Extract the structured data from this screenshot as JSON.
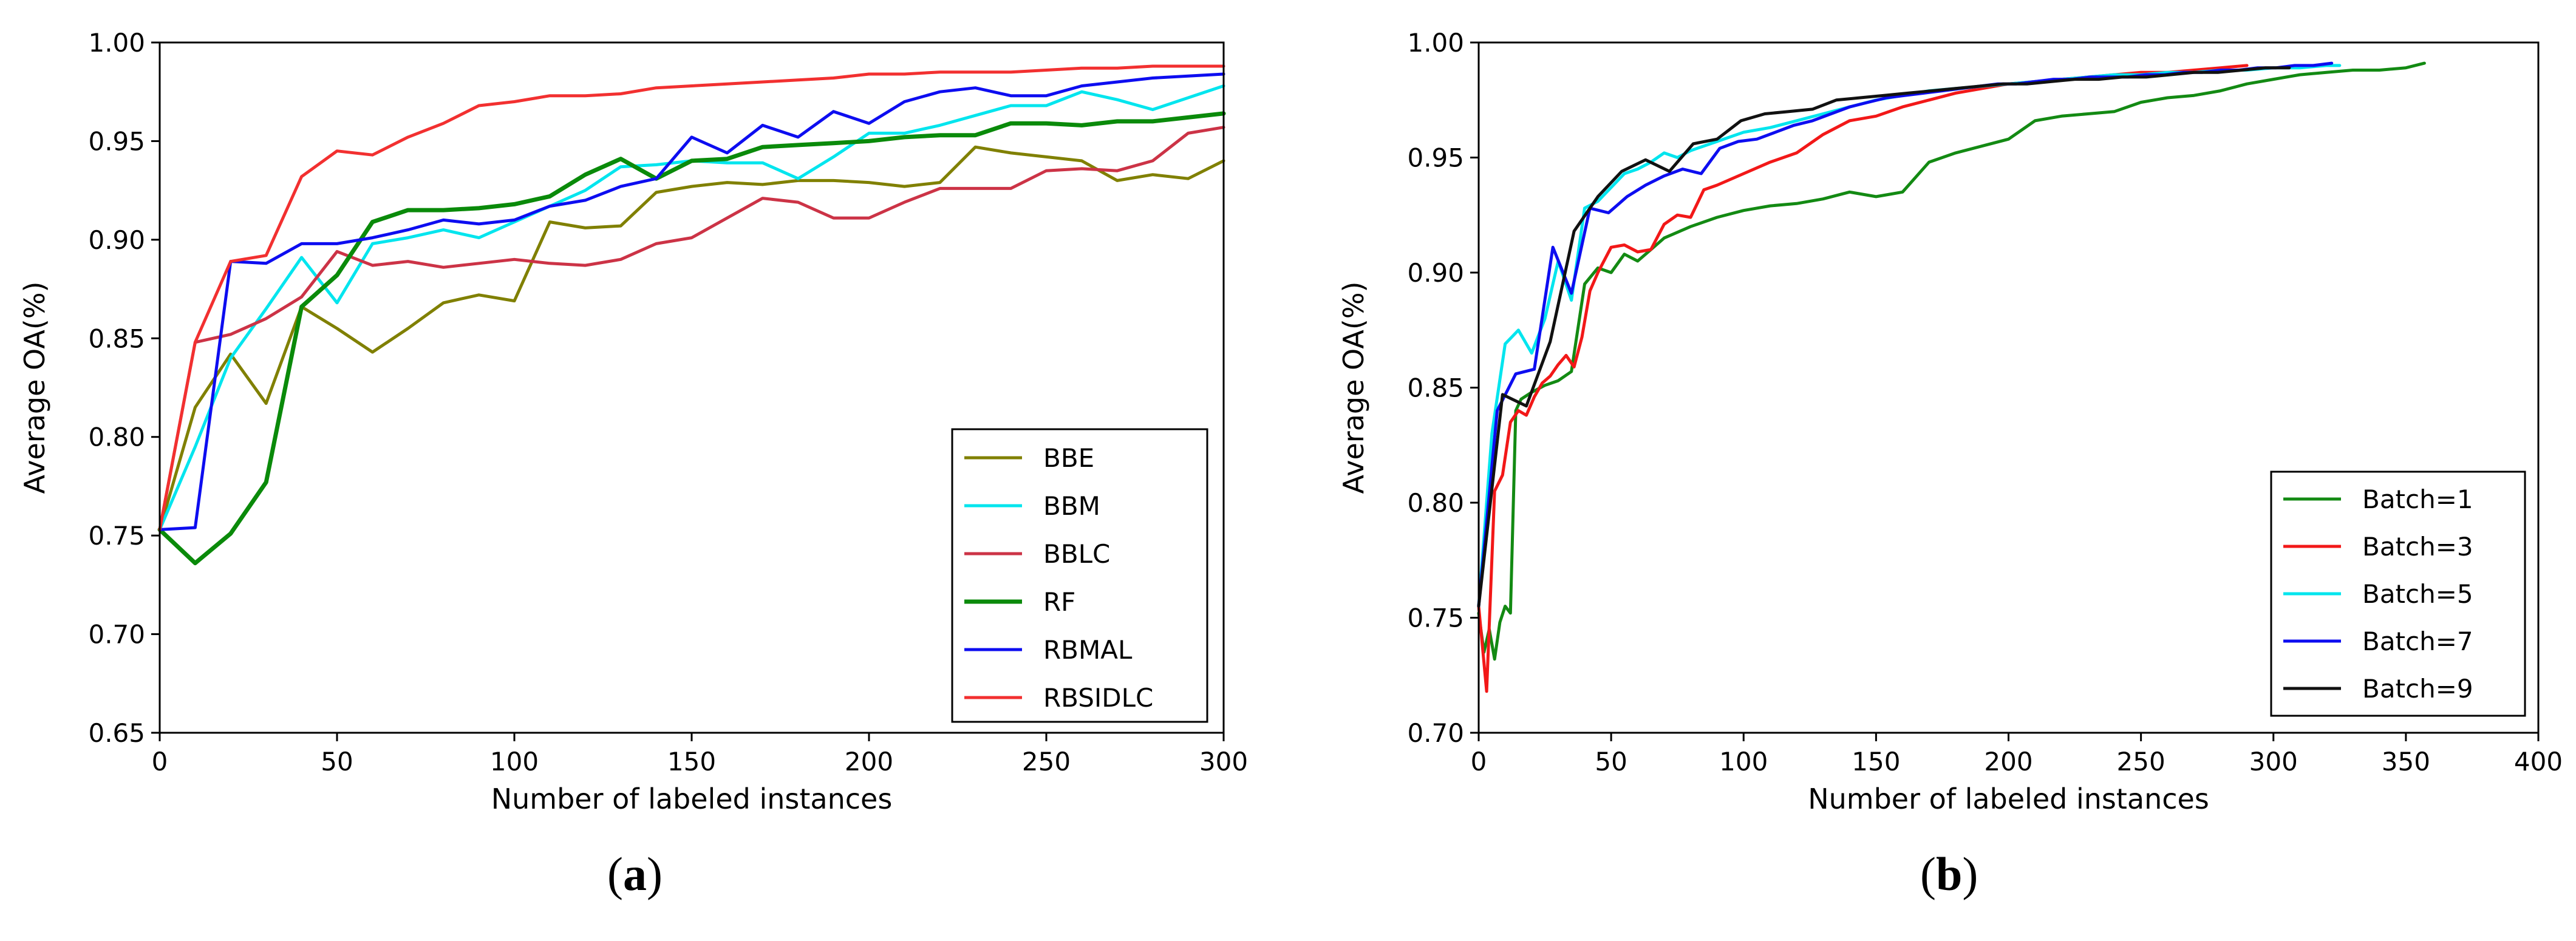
{
  "figure": {
    "panel_a": {
      "open": "(",
      "letter": "a",
      "close": ")"
    },
    "panel_b": {
      "open": "(",
      "letter": "b",
      "close": ")"
    }
  },
  "chart_data": [
    {
      "type": "line",
      "panel": "a",
      "xlabel": "Number of labeled instances",
      "ylabel": "Average OA(%)",
      "xlim": [
        0,
        300
      ],
      "ylim": [
        0.65,
        1.0
      ],
      "xticks": [
        0,
        50,
        100,
        150,
        200,
        250,
        300
      ],
      "xtick_labels": [
        "0",
        "50",
        "100",
        "150",
        "200",
        "250",
        "300"
      ],
      "yticks": [
        0.65,
        0.7,
        0.75,
        0.8,
        0.85,
        0.9,
        0.95,
        1.0
      ],
      "ytick_labels": [
        "0.65",
        "0.70",
        "0.75",
        "0.80",
        "0.85",
        "0.90",
        "0.95",
        "1.00"
      ],
      "grid": false,
      "legend_position": "lower-right",
      "x": [
        0,
        10,
        20,
        30,
        40,
        50,
        60,
        70,
        80,
        90,
        100,
        110,
        120,
        130,
        140,
        150,
        160,
        170,
        180,
        190,
        200,
        210,
        220,
        230,
        240,
        250,
        260,
        270,
        280,
        290,
        300
      ],
      "series": [
        {
          "name": "BBE",
          "color": "#808000",
          "width": 5,
          "values": [
            0.753,
            0.815,
            0.842,
            0.817,
            0.866,
            0.855,
            0.843,
            0.855,
            0.868,
            0.872,
            0.869,
            0.909,
            0.906,
            0.907,
            0.924,
            0.927,
            0.929,
            0.928,
            0.93,
            0.93,
            0.929,
            0.927,
            0.929,
            0.947,
            0.944,
            0.942,
            0.94,
            0.93,
            0.933,
            0.931,
            0.94
          ]
        },
        {
          "name": "BBM",
          "color": "#00e5ee",
          "width": 5,
          "values": [
            0.753,
            0.795,
            0.84,
            0.865,
            0.891,
            0.868,
            0.898,
            0.901,
            0.905,
            0.901,
            0.909,
            0.917,
            0.925,
            0.937,
            0.938,
            0.94,
            0.939,
            0.939,
            0.931,
            0.942,
            0.954,
            0.954,
            0.958,
            0.963,
            0.968,
            0.968,
            0.975,
            0.971,
            0.966,
            0.972,
            0.978
          ]
        },
        {
          "name": "BBLC",
          "color": "#cc3346",
          "width": 5,
          "values": [
            0.753,
            0.848,
            0.852,
            0.86,
            0.871,
            0.894,
            0.887,
            0.889,
            0.886,
            0.888,
            0.89,
            0.888,
            0.887,
            0.89,
            0.898,
            0.901,
            0.911,
            0.921,
            0.919,
            0.911,
            0.911,
            0.919,
            0.926,
            0.926,
            0.926,
            0.935,
            0.936,
            0.935,
            0.94,
            0.954,
            0.957
          ]
        },
        {
          "name": "RF",
          "color": "#0a8a0a",
          "width": 7,
          "values": [
            0.753,
            0.736,
            0.751,
            0.777,
            0.866,
            0.882,
            0.909,
            0.915,
            0.915,
            0.916,
            0.918,
            0.922,
            0.933,
            0.941,
            0.931,
            0.94,
            0.941,
            0.947,
            0.948,
            0.949,
            0.95,
            0.952,
            0.953,
            0.953,
            0.959,
            0.959,
            0.958,
            0.96,
            0.96,
            0.962,
            0.964
          ]
        },
        {
          "name": "RBMAL",
          "color": "#0d0df0",
          "width": 5,
          "values": [
            0.753,
            0.754,
            0.889,
            0.888,
            0.898,
            0.898,
            0.901,
            0.905,
            0.91,
            0.908,
            0.91,
            0.917,
            0.92,
            0.927,
            0.931,
            0.952,
            0.944,
            0.958,
            0.952,
            0.965,
            0.959,
            0.97,
            0.975,
            0.977,
            0.973,
            0.973,
            0.978,
            0.98,
            0.982,
            0.983,
            0.984
          ]
        },
        {
          "name": "RBSIDLC",
          "color": "#f23030",
          "width": 5,
          "values": [
            0.753,
            0.848,
            0.889,
            0.892,
            0.932,
            0.945,
            0.943,
            0.952,
            0.959,
            0.968,
            0.97,
            0.973,
            0.973,
            0.974,
            0.977,
            0.978,
            0.979,
            0.98,
            0.981,
            0.982,
            0.984,
            0.984,
            0.985,
            0.985,
            0.985,
            0.986,
            0.987,
            0.987,
            0.988,
            0.988,
            0.988
          ]
        }
      ]
    },
    {
      "type": "line",
      "panel": "b",
      "xlabel": "Number of labeled instances",
      "ylabel": "Average OA(%)",
      "xlim": [
        0,
        400
      ],
      "ylim": [
        0.7,
        1.0
      ],
      "xticks": [
        0,
        50,
        100,
        150,
        200,
        250,
        300,
        350,
        400
      ],
      "xtick_labels": [
        "0",
        "50",
        "100",
        "150",
        "200",
        "250",
        "300",
        "350",
        "400"
      ],
      "yticks": [
        0.7,
        0.75,
        0.8,
        0.85,
        0.9,
        0.95,
        1.0
      ],
      "ytick_labels": [
        "0.70",
        "0.75",
        "0.80",
        "0.85",
        "0.90",
        "0.95",
        "1.00"
      ],
      "grid": false,
      "legend_position": "lower-right",
      "series": [
        {
          "name": "Batch=1",
          "color": "#138a13",
          "width": 5,
          "x": [
            0,
            2,
            4,
            6,
            8,
            10,
            12,
            14,
            16,
            20,
            25,
            30,
            35,
            40,
            45,
            50,
            55,
            60,
            65,
            70,
            80,
            90,
            100,
            110,
            120,
            130,
            140,
            150,
            155,
            160,
            170,
            180,
            190,
            200,
            210,
            220,
            230,
            240,
            250,
            260,
            270,
            280,
            290,
            300,
            310,
            320,
            330,
            340,
            350,
            357
          ],
          "values": [
            0.752,
            0.735,
            0.745,
            0.732,
            0.748,
            0.755,
            0.752,
            0.84,
            0.845,
            0.848,
            0.851,
            0.853,
            0.857,
            0.895,
            0.902,
            0.9,
            0.908,
            0.905,
            0.91,
            0.915,
            0.92,
            0.924,
            0.927,
            0.929,
            0.93,
            0.932,
            0.935,
            0.933,
            0.934,
            0.935,
            0.948,
            0.952,
            0.955,
            0.958,
            0.966,
            0.968,
            0.969,
            0.97,
            0.974,
            0.976,
            0.977,
            0.979,
            0.982,
            0.984,
            0.986,
            0.987,
            0.988,
            0.988,
            0.989,
            0.991
          ]
        },
        {
          "name": "Batch=3",
          "color": "#f21818",
          "width": 5,
          "x": [
            0,
            3,
            6,
            9,
            12,
            15,
            18,
            21,
            24,
            27,
            30,
            33,
            36,
            39,
            42,
            45,
            50,
            55,
            60,
            65,
            70,
            75,
            80,
            85,
            90,
            100,
            110,
            120,
            130,
            140,
            150,
            160,
            170,
            180,
            190,
            200,
            210,
            220,
            230,
            240,
            250,
            260,
            270,
            280,
            290
          ],
          "values": [
            0.755,
            0.718,
            0.805,
            0.812,
            0.835,
            0.84,
            0.838,
            0.846,
            0.852,
            0.855,
            0.86,
            0.864,
            0.859,
            0.872,
            0.892,
            0.9,
            0.911,
            0.912,
            0.909,
            0.91,
            0.921,
            0.925,
            0.924,
            0.936,
            0.938,
            0.943,
            0.948,
            0.952,
            0.96,
            0.966,
            0.968,
            0.972,
            0.975,
            0.978,
            0.98,
            0.982,
            0.983,
            0.984,
            0.985,
            0.986,
            0.987,
            0.987,
            0.988,
            0.989,
            0.99
          ]
        },
        {
          "name": "Batch=5",
          "color": "#00e5ee",
          "width": 5,
          "x": [
            0,
            5,
            10,
            15,
            20,
            25,
            30,
            35,
            40,
            45,
            50,
            55,
            60,
            65,
            70,
            75,
            80,
            90,
            100,
            110,
            120,
            130,
            140,
            150,
            160,
            170,
            180,
            190,
            200,
            210,
            220,
            230,
            240,
            250,
            260,
            270,
            280,
            290,
            300,
            310,
            320,
            325
          ],
          "values": [
            0.755,
            0.83,
            0.869,
            0.875,
            0.865,
            0.88,
            0.905,
            0.888,
            0.928,
            0.931,
            0.937,
            0.943,
            0.945,
            0.948,
            0.952,
            0.95,
            0.953,
            0.957,
            0.961,
            0.963,
            0.966,
            0.969,
            0.972,
            0.975,
            0.977,
            0.979,
            0.98,
            0.981,
            0.982,
            0.983,
            0.984,
            0.985,
            0.986,
            0.986,
            0.987,
            0.987,
            0.988,
            0.988,
            0.989,
            0.989,
            0.99,
            0.99
          ]
        },
        {
          "name": "Batch=7",
          "color": "#0d0df0",
          "width": 5,
          "x": [
            0,
            7,
            14,
            21,
            28,
            35,
            42,
            49,
            56,
            63,
            70,
            77,
            84,
            91,
            98,
            105,
            112,
            119,
            126,
            133,
            140,
            147,
            154,
            161,
            168,
            175,
            182,
            189,
            196,
            203,
            210,
            217,
            224,
            231,
            238,
            245,
            252,
            259,
            266,
            273,
            280,
            287,
            294,
            301,
            308,
            315,
            322
          ],
          "values": [
            0.755,
            0.84,
            0.856,
            0.858,
            0.911,
            0.891,
            0.928,
            0.926,
            0.933,
            0.938,
            0.942,
            0.945,
            0.943,
            0.954,
            0.957,
            0.958,
            0.961,
            0.964,
            0.966,
            0.969,
            0.972,
            0.974,
            0.976,
            0.977,
            0.978,
            0.979,
            0.98,
            0.981,
            0.982,
            0.982,
            0.983,
            0.984,
            0.984,
            0.985,
            0.985,
            0.985,
            0.986,
            0.986,
            0.987,
            0.987,
            0.988,
            0.988,
            0.989,
            0.989,
            0.99,
            0.99,
            0.991
          ]
        },
        {
          "name": "Batch=9",
          "color": "#111111",
          "width": 5,
          "x": [
            0,
            9,
            18,
            27,
            36,
            45,
            54,
            63,
            72,
            81,
            90,
            99,
            108,
            117,
            126,
            135,
            144,
            153,
            162,
            171,
            180,
            189,
            198,
            207,
            216,
            225,
            234,
            243,
            252,
            261,
            270,
            279,
            288,
            297,
            306
          ],
          "values": [
            0.755,
            0.847,
            0.842,
            0.87,
            0.918,
            0.933,
            0.944,
            0.949,
            0.944,
            0.956,
            0.958,
            0.966,
            0.969,
            0.97,
            0.971,
            0.975,
            0.976,
            0.977,
            0.978,
            0.979,
            0.98,
            0.981,
            0.982,
            0.982,
            0.983,
            0.984,
            0.984,
            0.985,
            0.985,
            0.986,
            0.987,
            0.987,
            0.988,
            0.989,
            0.989
          ]
        }
      ]
    }
  ]
}
